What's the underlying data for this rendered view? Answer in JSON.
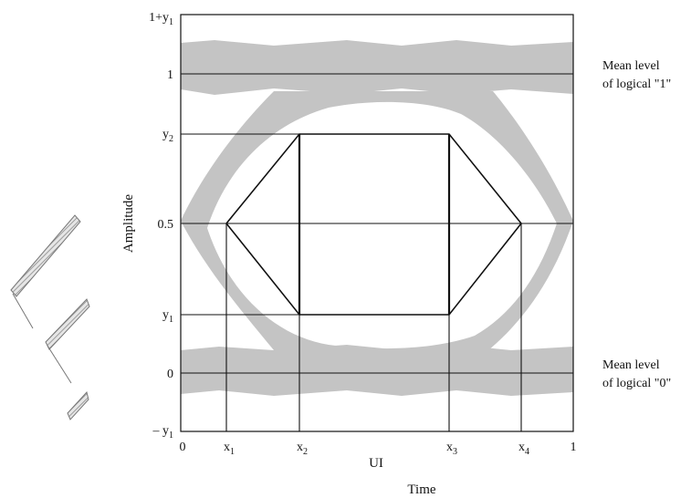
{
  "figure": {
    "y_axis_title": "Amplitude",
    "x_axis_title": "UI",
    "caption": "Time",
    "y_ticks": [
      {
        "base": "1+y",
        "sub": "1"
      },
      {
        "base": "1",
        "sub": ""
      },
      {
        "base": "y",
        "sub": "2"
      },
      {
        "base": "0.5",
        "sub": ""
      },
      {
        "base": "y",
        "sub": "1"
      },
      {
        "base": "0",
        "sub": ""
      },
      {
        "base": "– y",
        "sub": "1"
      }
    ],
    "x_ticks": [
      {
        "base": "0",
        "sub": ""
      },
      {
        "base": "x",
        "sub": "1"
      },
      {
        "base": "x",
        "sub": "2"
      },
      {
        "base": "x",
        "sub": "3"
      },
      {
        "base": "x",
        "sub": "4"
      },
      {
        "base": "1",
        "sub": ""
      }
    ],
    "annotations": {
      "level_one": [
        "Mean level",
        "of logical \"1\""
      ],
      "level_zero": [
        "Mean level",
        "of logical \"0\""
      ]
    },
    "colors": {
      "eye_band": "#c4c4c4",
      "lines": "#111111",
      "background": "#ffffff"
    }
  }
}
